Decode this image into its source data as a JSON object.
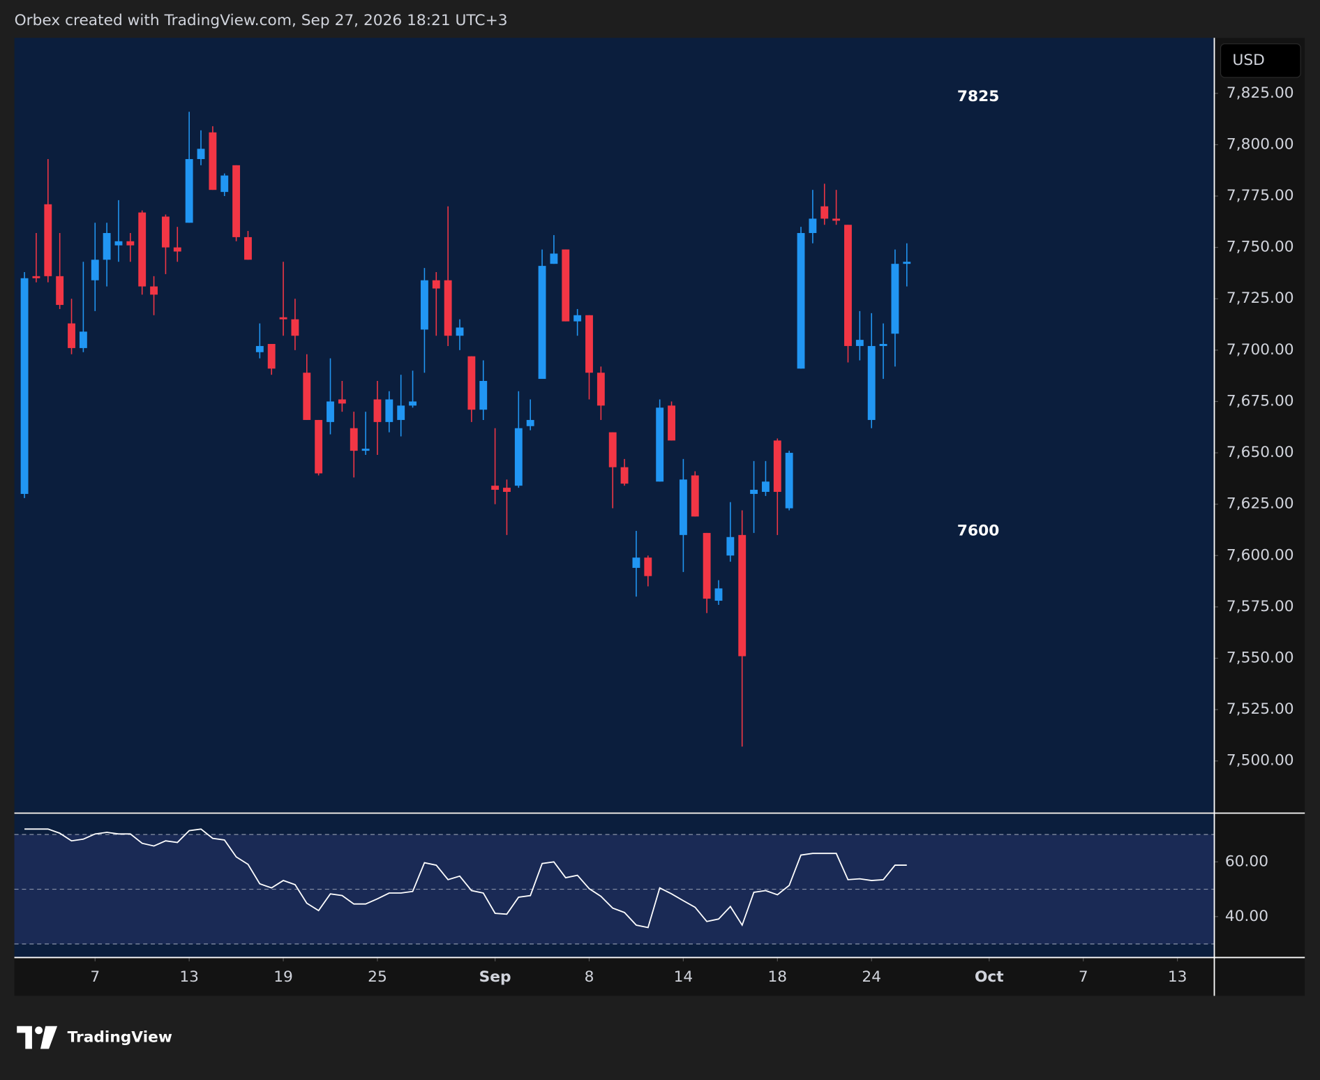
{
  "header": "Orbex created with TradingView.com, Sep 27, 2026 18:21 UTC+3",
  "footer": "TradingView",
  "chart_data": [
    {
      "type": "candlestick",
      "currency": "USD",
      "annotations": [
        "7825",
        "7600"
      ],
      "up_color": "#2196f3",
      "down_color": "#f23645",
      "open": [
        7630,
        7736,
        7771,
        7736,
        7713,
        7701,
        7734,
        7744,
        7751,
        7753,
        7767,
        7731,
        7765,
        7750,
        7762,
        7793,
        7806,
        7777,
        7790,
        7755,
        7699,
        7703,
        7716,
        7715,
        7689,
        7666,
        7665,
        7676,
        7662,
        7651,
        7676,
        7665,
        7666,
        7673,
        7710,
        7734,
        7734,
        7707,
        7697,
        7671,
        7634,
        7633,
        7634,
        7663,
        7686,
        7742,
        7749,
        7714,
        7717,
        7689,
        7660,
        7643,
        7594,
        7599,
        7636,
        7673,
        7610,
        7639,
        7611,
        7578,
        7600,
        7610,
        7630,
        7631,
        7656,
        7623,
        7691,
        7757,
        7770,
        7764,
        7761,
        7702,
        7666,
        7702,
        7708,
        7742
      ],
      "high": [
        7738,
        7757,
        7793,
        7757,
        7725,
        7743,
        7762,
        7762,
        7773,
        7757,
        7768,
        7736,
        7766,
        7760,
        7816,
        7807,
        7809,
        7786,
        7790,
        7758,
        7713,
        7703,
        7743,
        7725,
        7698,
        7666,
        7696,
        7685,
        7670,
        7670,
        7685,
        7680,
        7688,
        7690,
        7740,
        7738,
        7770,
        7715,
        7697,
        7695,
        7662,
        7637,
        7680,
        7676,
        7749,
        7756,
        7749,
        7720,
        7717,
        7692,
        7660,
        7647,
        7612,
        7600,
        7676,
        7675,
        7647,
        7641,
        7611,
        7588,
        7626,
        7622,
        7646,
        7646,
        7657,
        7651,
        7760,
        7778,
        7781,
        7778,
        7761,
        7719,
        7718,
        7713,
        7749,
        7752
      ],
      "low": [
        7628,
        7733,
        7733,
        7720,
        7698,
        7699,
        7719,
        7731,
        7743,
        7743,
        7727,
        7717,
        7737,
        7743,
        7762,
        7790,
        7778,
        7775,
        7753,
        7744,
        7696,
        7688,
        7707,
        7700,
        7666,
        7639,
        7659,
        7670,
        7638,
        7649,
        7649,
        7660,
        7658,
        7672,
        7689,
        7707,
        7702,
        7700,
        7665,
        7666,
        7625,
        7610,
        7633,
        7661,
        7686,
        7742,
        7714,
        7707,
        7676,
        7666,
        7623,
        7634,
        7580,
        7585,
        7636,
        7656,
        7592,
        7619,
        7572,
        7576,
        7597,
        7507,
        7611,
        7629,
        7610,
        7622,
        7691,
        7752,
        7761,
        7761,
        7694,
        7695,
        7662,
        7686,
        7692,
        7731
      ],
      "close": [
        7735,
        7735,
        7736,
        7722,
        7701,
        7709,
        7744,
        7757,
        7753,
        7751,
        7731,
        7727,
        7750,
        7748,
        7793,
        7798,
        7778,
        7785,
        7755,
        7744,
        7702,
        7691,
        7715,
        7707,
        7666,
        7640,
        7675,
        7674,
        7651,
        7652,
        7665,
        7676,
        7673,
        7675,
        7734,
        7730,
        7707,
        7711,
        7671,
        7685,
        7632,
        7631,
        7662,
        7666,
        7741,
        7747,
        7714,
        7717,
        7689,
        7673,
        7643,
        7635,
        7599,
        7590,
        7672,
        7656,
        7637,
        7619,
        7579,
        7584,
        7609,
        7551,
        7632,
        7636,
        7631,
        7650,
        7757,
        7764,
        7764,
        7763,
        7702,
        7705,
        7702,
        7703,
        7742,
        7743
      ],
      "xlim": [
        -0.86,
        101.1
      ],
      "xticks": [
        {
          "value": 6,
          "label": "7"
        },
        {
          "value": 14,
          "label": "13"
        },
        {
          "value": 22,
          "label": "19"
        },
        {
          "value": 30,
          "label": "25"
        },
        {
          "value": 40,
          "label": "Sep"
        },
        {
          "value": 48,
          "label": "8"
        },
        {
          "value": 56,
          "label": "14"
        },
        {
          "value": 64,
          "label": "18"
        },
        {
          "value": 72,
          "label": "24"
        },
        {
          "value": 82,
          "label": "Oct"
        },
        {
          "value": 90,
          "label": "7"
        },
        {
          "value": 98,
          "label": "13"
        }
      ],
      "ylim": [
        7475,
        7852
      ],
      "yticks": [
        {
          "value": 7500,
          "label": "7,500.00"
        },
        {
          "value": 7525,
          "label": "7,525.00"
        },
        {
          "value": 7550,
          "label": "7,550.00"
        },
        {
          "value": 7575,
          "label": "7,575.00"
        },
        {
          "value": 7600,
          "label": "7,600.00"
        },
        {
          "value": 7625,
          "label": "7,625.00"
        },
        {
          "value": 7650,
          "label": "7,650.00"
        },
        {
          "value": 7675,
          "label": "7,675.00"
        },
        {
          "value": 7700,
          "label": "7,700.00"
        },
        {
          "value": 7725,
          "label": "7,725.00"
        },
        {
          "value": 7750,
          "label": "7,750.00"
        },
        {
          "value": 7775,
          "label": "7,775.00"
        },
        {
          "value": 7800,
          "label": "7,800.00"
        },
        {
          "value": 7825,
          "label": "7,825.00"
        }
      ]
    },
    {
      "type": "line",
      "color": "#ffffff",
      "values": [
        72.0,
        72.0,
        72.0,
        70.5,
        67.7,
        68.3,
        70.2,
        70.8,
        70.2,
        70.2,
        66.8,
        65.8,
        67.7,
        67.1,
        71.4,
        72.0,
        68.6,
        68.0,
        61.8,
        59.1,
        52.0,
        50.5,
        53.2,
        51.7,
        44.9,
        42.2,
        48.3,
        47.7,
        44.6,
        44.6,
        46.5,
        48.6,
        48.6,
        49.2,
        59.7,
        58.8,
        53.5,
        54.8,
        49.5,
        48.6,
        41.2,
        40.9,
        47.1,
        47.7,
        59.4,
        60.0,
        54.2,
        55.1,
        50.2,
        47.4,
        43.1,
        41.5,
        36.9,
        36.0,
        50.5,
        48.3,
        45.8,
        43.4,
        38.2,
        39.1,
        43.7,
        36.9,
        48.9,
        49.5,
        48.0,
        51.4,
        62.5,
        63.1,
        63.1,
        63.1,
        53.5,
        53.8,
        53.2,
        53.5,
        58.8,
        58.8
      ],
      "levels": [
        70,
        50,
        30
      ],
      "ylim": [
        25.2,
        77.5
      ],
      "yticks": [
        {
          "value": 40,
          "label": "40.00"
        },
        {
          "value": 60,
          "label": "60.00"
        }
      ]
    }
  ]
}
